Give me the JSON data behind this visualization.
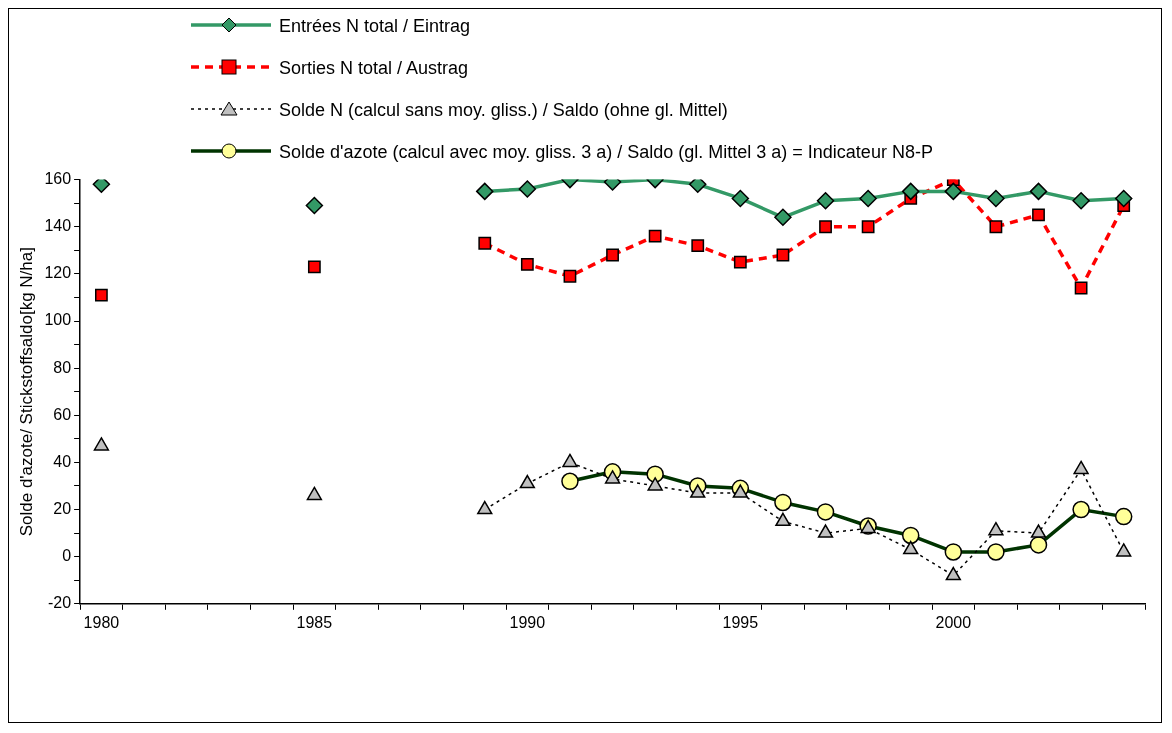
{
  "chart_data": {
    "type": "line",
    "ylabel": "Solde d'azote/ Stickstoffsaldo[kg N/ha]",
    "categories": [
      "1980",
      null,
      null,
      null,
      null,
      "1985",
      null,
      null,
      null,
      null,
      "1990",
      null,
      null,
      null,
      null,
      "1995",
      null,
      null,
      null,
      null,
      "2000",
      null,
      null,
      null,
      null
    ],
    "series": [
      {
        "name": "Entrées N total / Eintrag",
        "color": "#339966",
        "marker": "diamond",
        "line_style": "solid",
        "values": [
          158,
          null,
          null,
          null,
          null,
          149,
          null,
          null,
          null,
          155,
          156,
          160,
          159,
          160,
          158,
          152,
          144,
          151,
          152,
          155,
          155,
          152,
          155,
          151,
          152
        ]
      },
      {
        "name": "Sorties N total / Austrag",
        "color": "#ff0000",
        "marker": "square",
        "line_style": "dashed",
        "values": [
          111,
          null,
          null,
          null,
          null,
          123,
          null,
          null,
          null,
          133,
          124,
          119,
          128,
          136,
          132,
          125,
          128,
          140,
          140,
          152,
          160,
          140,
          145,
          114,
          149
        ]
      },
      {
        "name": "Solde N (calcul sans moy. gliss.) / Saldo (ohne gl. Mittel)",
        "color": "#000000",
        "marker": "triangle",
        "line_style": "dotted",
        "values": [
          47,
          null,
          null,
          null,
          null,
          26,
          null,
          null,
          null,
          20,
          31,
          40,
          33,
          30,
          27,
          27,
          15,
          10,
          12,
          3,
          -8,
          11,
          10,
          37,
          2
        ]
      },
      {
        "name": "Solde d'azote (calcul avec moy. gliss. 3 a) / Saldo (gl. Mittel 3 a) = Indicateur N8-P",
        "color": "#003300",
        "marker": "circle",
        "line_style": "solid",
        "values": [
          null,
          null,
          null,
          null,
          null,
          null,
          null,
          null,
          null,
          null,
          null,
          32,
          36,
          35,
          30,
          29,
          23,
          19,
          13,
          9,
          2,
          2,
          5,
          20,
          17
        ]
      }
    ],
    "ylim": [
      -20,
      160
    ],
    "yticks": [
      -20,
      {
        "value": -10,
        "label": null
      },
      0,
      {
        "value": 10,
        "label": null
      },
      20,
      {
        "value": 30,
        "label": null
      },
      40,
      {
        "value": 50,
        "label": null
      },
      60,
      {
        "value": 70,
        "label": null
      },
      80,
      {
        "value": 90,
        "label": null
      },
      100,
      {
        "value": 110,
        "label": null
      },
      120,
      {
        "value": 130,
        "label": null
      },
      140,
      {
        "value": 150,
        "label": null
      },
      160
    ],
    "grid": false,
    "legend": "top"
  }
}
